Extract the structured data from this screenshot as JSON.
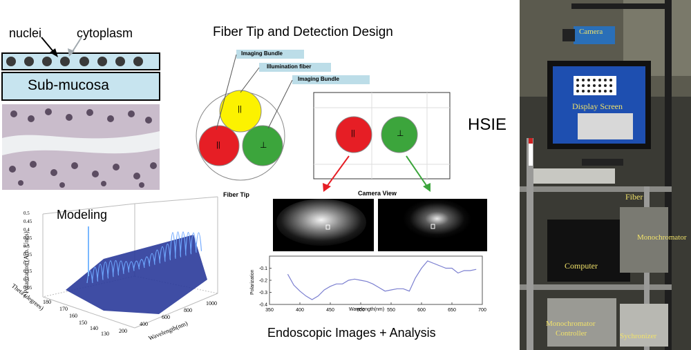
{
  "tissue": {
    "nuclei_label": "nuclei",
    "cytoplasm_label": "cytoplasm",
    "submucosa_label": "Sub-mucosa",
    "modeling_label": "Modeling",
    "surface_plot": {
      "ylabel": "Polarization (Arb. Units)",
      "xlabel": "Wavelength(nm)",
      "theta_label": "Theta (degrees)",
      "z_ticks": [
        "0",
        "0.05",
        "0.1",
        "0.15",
        "0.2",
        "0.25",
        "0.3",
        "0.35",
        "0.4",
        "0.45",
        "0.5"
      ],
      "theta_ticks": [
        "180",
        "170",
        "160",
        "150",
        "140",
        "130"
      ],
      "wavelength_ticks": [
        "200",
        "400",
        "600",
        "800",
        "1000"
      ]
    }
  },
  "fiber": {
    "title": "Fiber Tip and Detection Design",
    "imaging_bundle_1": "Imaging Bundle",
    "illumination_fiber": "Illumination fiber",
    "imaging_bundle_2": "Imaging Bundle",
    "fiber_tip_label": "Fiber Tip",
    "camera_view_label": "Camera View",
    "parallel_symbol": "||",
    "perp_symbol": "⊥"
  },
  "analysis": {
    "title": "Endoscopic Images + Analysis"
  },
  "chart_data": {
    "type": "line",
    "title": "",
    "xlabel": "Wavelength(nm)",
    "ylabel": "Polarization",
    "xlim": [
      350,
      700
    ],
    "ylim": [
      -0.4,
      0
    ],
    "x_ticks": [
      350,
      400,
      450,
      500,
      550,
      600,
      650,
      700
    ],
    "y_ticks": [
      -0.1,
      -0.2,
      -0.3,
      -0.4
    ],
    "series": [
      {
        "color": "#7b7fd0",
        "x": [
          380,
          390,
          400,
          410,
          420,
          430,
          440,
          450,
          460,
          470,
          480,
          490,
          500,
          510,
          520,
          530,
          540,
          550,
          560,
          570,
          580,
          590,
          600,
          610,
          620,
          630,
          640,
          650,
          660,
          670,
          680,
          690
        ],
        "y": [
          -0.15,
          -0.24,
          -0.29,
          -0.33,
          -0.36,
          -0.33,
          -0.28,
          -0.25,
          -0.23,
          -0.23,
          -0.2,
          -0.19,
          -0.2,
          -0.21,
          -0.23,
          -0.26,
          -0.29,
          -0.28,
          -0.27,
          -0.27,
          -0.29,
          -0.18,
          -0.1,
          -0.04,
          -0.06,
          -0.08,
          -0.1,
          -0.1,
          -0.14,
          -0.12,
          -0.12,
          -0.11
        ]
      }
    ]
  },
  "photo": {
    "hsie_label": "HSIE",
    "camera": "Camera",
    "display_screen": "Display Screen",
    "fiber": "Fiber",
    "monochromator": "Monochromator",
    "computer": "Computer",
    "monochromator_controller_1": "Monochromator",
    "monochromator_controller_2": "Controller",
    "sychronizer": "Sychronizer"
  }
}
